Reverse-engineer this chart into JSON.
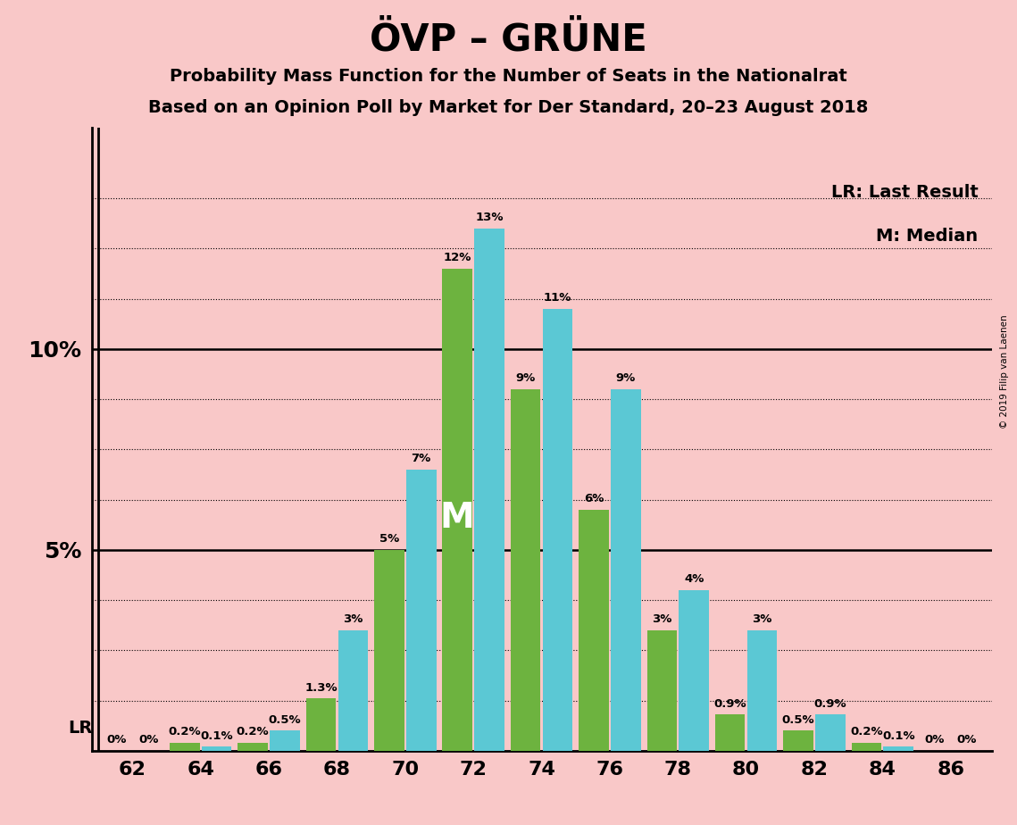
{
  "title": "ÖVP – GRÜNE",
  "subtitle1": "Probability Mass Function for the Number of Seats in the Nationalrat",
  "subtitle2": "Based on an Opinion Poll by Market for Der Standard, 20–23 August 2018",
  "copyright": "© 2019 Filip van Laenen",
  "legend_lr": "LR: Last Result",
  "legend_m": "M: Median",
  "seats": [
    62,
    64,
    66,
    68,
    70,
    72,
    74,
    76,
    78,
    80,
    82,
    84,
    86
  ],
  "blue_values": [
    0.0,
    0.1,
    0.5,
    3.0,
    7.0,
    13.0,
    11.0,
    9.0,
    4.0,
    3.0,
    0.9,
    0.1,
    0.0
  ],
  "green_values": [
    0.0,
    0.2,
    0.2,
    1.3,
    5.0,
    12.0,
    9.0,
    6.0,
    3.0,
    0.9,
    0.5,
    0.2,
    0.0
  ],
  "blue_labels": [
    "0%",
    "0.1%",
    "0.5%",
    "3%",
    "7%",
    "13%",
    "11%",
    "9%",
    "4%",
    "3%",
    "0.9%",
    "0.1%",
    "0%"
  ],
  "green_labels": [
    "0%",
    "0.2%",
    "0.2%",
    "1.3%",
    "5%",
    "12%",
    "9%",
    "6%",
    "3%",
    "0.9%",
    "0.5%",
    "0.2%",
    "0%"
  ],
  "blue_color": "#5BC8D4",
  "green_color": "#6DB33F",
  "background_color": "#F9C8C8",
  "lr_seat_index": 0,
  "median_seat_index": 5,
  "ylim": [
    0,
    15.5
  ],
  "solid_hlines": [
    5.0,
    10.0
  ],
  "dotted_hlines": [
    1.25,
    2.5,
    3.75,
    6.25,
    7.5,
    8.75,
    11.25,
    12.5,
    13.75
  ]
}
